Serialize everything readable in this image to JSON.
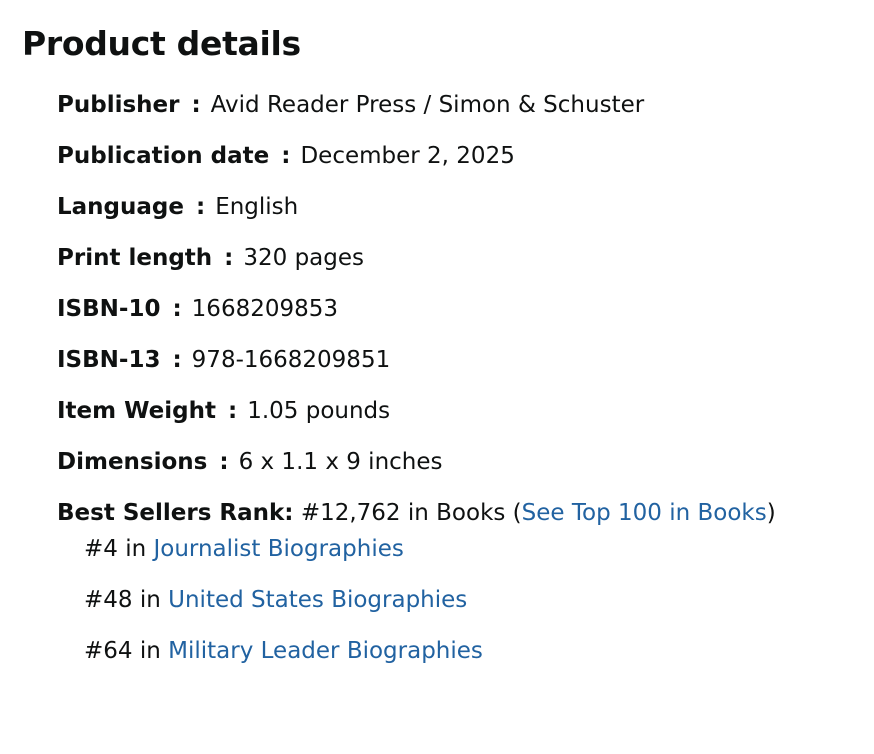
{
  "title": "Product details",
  "separator": ":",
  "details": [
    {
      "label": "Publisher",
      "value": "Avid Reader Press / Simon & Schuster"
    },
    {
      "label": "Publication date",
      "value": "December 2, 2025"
    },
    {
      "label": "Language",
      "value": "English"
    },
    {
      "label": "Print length",
      "value": "320 pages"
    },
    {
      "label": "ISBN-10",
      "value": "1668209853"
    },
    {
      "label": "ISBN-13",
      "value": "978-1668209851"
    },
    {
      "label": "Item Weight",
      "value": "1.05 pounds"
    },
    {
      "label": "Dimensions",
      "value": "6 x 1.1 x 9 inches"
    }
  ],
  "best_sellers": {
    "label": "Best Sellers Rank:",
    "rank": "#12,762 in Books (",
    "link": "See Top 100 in Books",
    "close": ")",
    "sub_ranks": [
      {
        "rank": "#4 in",
        "link": "Journalist Biographies"
      },
      {
        "rank": "#48 in",
        "link": "United States Biographies"
      },
      {
        "rank": "#64 in",
        "link": "Military Leader Biographies"
      }
    ]
  }
}
